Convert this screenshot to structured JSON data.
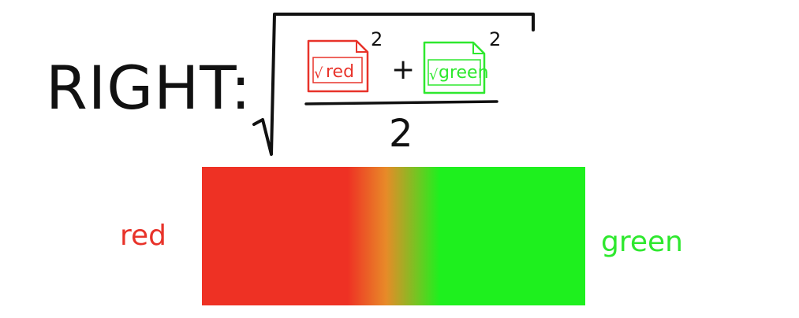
{
  "heading": {
    "label": "RIGHT:"
  },
  "formula": {
    "term1": {
      "radical": "√",
      "label": "red",
      "exponent": "2"
    },
    "operator": "+",
    "term2": {
      "radical": "√",
      "label": "green",
      "exponent": "2"
    },
    "denominator": "2"
  },
  "gradient_bar": {
    "start_label": "red",
    "end_label": "green",
    "start_color": "#ee3124",
    "end_color": "#1ef01e"
  },
  "colors": {
    "ink": "#111111",
    "red": "#e8332a",
    "green": "#2ee82e",
    "box_fill": "#ffffff"
  }
}
